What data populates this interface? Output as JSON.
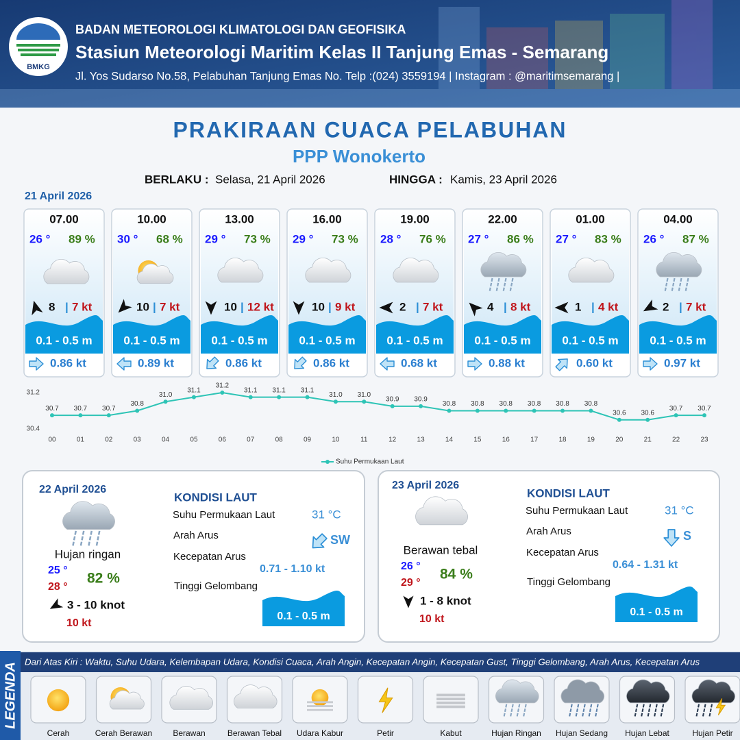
{
  "header": {
    "logo_text": "BMKG",
    "agency": "BADAN METEOROLOGI KLIMATOLOGI DAN GEOFISIKA",
    "station": "Stasiun Meteorologi Maritim Kelas II Tanjung Emas - Semarang",
    "address": "Jl. Yos Sudarso No.58, Pelabuhan Tanjung Emas No. Telp :(024) 3559194 | Instagram : @maritimsemarang |"
  },
  "title": "PRAKIRAAN CUACA PELABUHAN",
  "subtitle": "PPP Wonokerto",
  "validity": {
    "from_label": "BERLAKU :",
    "from": "Selasa, 21 April 2026",
    "to_label": "HINGGA :",
    "to": "Kamis, 23 April 2026"
  },
  "day1": {
    "date": "21 April 2026",
    "forecasts": [
      {
        "time": "07.00",
        "temp": "26 °",
        "humidity": "89 %",
        "weather": "Berawan",
        "wind_direction_deg": 345,
        "wind_speed": "8",
        "gust": "7 kt",
        "wave": "0.1 - 0.5 m",
        "current_direction_deg": 90,
        "current_speed": "0.86 kt"
      },
      {
        "time": "10.00",
        "temp": "30 °",
        "humidity": "68 %",
        "weather": "Cerah Berawan",
        "wind_direction_deg": 225,
        "wind_speed": "10",
        "gust": "7 kt",
        "wave": "0.1 - 0.5 m",
        "current_direction_deg": 270,
        "current_speed": "0.89 kt"
      },
      {
        "time": "13.00",
        "temp": "29 °",
        "humidity": "73 %",
        "weather": "Berawan Tebal",
        "wind_direction_deg": 180,
        "wind_speed": "10",
        "gust": "12 kt",
        "wave": "0.1 - 0.5 m",
        "current_direction_deg": 225,
        "current_speed": "0.86 kt"
      },
      {
        "time": "16.00",
        "temp": "29 °",
        "humidity": "73 %",
        "weather": "Berawan Tebal",
        "wind_direction_deg": 180,
        "wind_speed": "10",
        "gust": "9 kt",
        "wave": "0.1 - 0.5 m",
        "current_direction_deg": 225,
        "current_speed": "0.86 kt"
      },
      {
        "time": "19.00",
        "temp": "28 °",
        "humidity": "76 %",
        "weather": "Berawan Tebal",
        "wind_direction_deg": 270,
        "wind_speed": "2",
        "gust": "7 kt",
        "wave": "0.1 - 0.5 m",
        "current_direction_deg": 270,
        "current_speed": "0.68 kt"
      },
      {
        "time": "22.00",
        "temp": "27 °",
        "humidity": "86 %",
        "weather": "Hujan Ringan",
        "wind_direction_deg": 315,
        "wind_speed": "4",
        "gust": "8 kt",
        "wave": "0.1 - 0.5 m",
        "current_direction_deg": 90,
        "current_speed": "0.88 kt"
      },
      {
        "time": "01.00",
        "temp": "27 °",
        "humidity": "83 %",
        "weather": "Berawan Tebal",
        "wind_direction_deg": 270,
        "wind_speed": "1",
        "gust": "4 kt",
        "wave": "0.1 - 0.5 m",
        "current_direction_deg": 45,
        "current_speed": "0.60 kt"
      },
      {
        "time": "04.00",
        "temp": "26 °",
        "humidity": "87 %",
        "weather": "Hujan Ringan",
        "wind_direction_deg": 240,
        "wind_speed": "2",
        "gust": "7 kt",
        "wave": "0.1 - 0.5 m",
        "current_direction_deg": 90,
        "current_speed": "0.97 kt"
      }
    ]
  },
  "chart_data": {
    "type": "line",
    "categories": [
      "00",
      "01",
      "02",
      "03",
      "04",
      "05",
      "06",
      "07",
      "08",
      "09",
      "10",
      "11",
      "12",
      "13",
      "14",
      "15",
      "16",
      "17",
      "18",
      "19",
      "20",
      "21",
      "22",
      "23"
    ],
    "series": [
      {
        "name": "Suhu Permukaan Laut",
        "color": "#2ec4b6",
        "values": [
          30.7,
          30.7,
          30.7,
          30.8,
          31.0,
          31.1,
          31.2,
          31.1,
          31.1,
          31.1,
          31.0,
          31.0,
          30.9,
          30.9,
          30.8,
          30.8,
          30.8,
          30.8,
          30.8,
          30.8,
          30.6,
          30.6,
          30.7,
          30.7
        ],
        "value_labels": [
          "30.7",
          "30.7",
          "30.7",
          "30.8",
          "31.0",
          "31.1",
          "31.2",
          "31.1",
          "31.1",
          "31.1",
          "31.0",
          "31.0",
          "30.9",
          "30.9",
          "30.8",
          "30.8",
          "30.8",
          "30.8",
          "30.8",
          "30.8",
          "30.6",
          "30.6",
          "30.7",
          "30.7"
        ]
      }
    ],
    "ylim": [
      30.4,
      31.2
    ],
    "yticks": [
      30.4,
      31.2
    ],
    "legend": "bottom"
  },
  "days": [
    {
      "date": "22 April 2026",
      "condition": "Hujan ringan",
      "temp_min": "25 °",
      "temp_max": "28 °",
      "humidity": "82 %",
      "wind_direction_deg": 240,
      "wind": "3  - 10 knot",
      "gust": "10 kt",
      "sea_title": "KONDISI LAUT",
      "sst_label": "Suhu Permukaan Laut",
      "sst": "31 °C",
      "current_dir_label": "Arah Arus",
      "current_direction_deg": 225,
      "current_dir": "SW",
      "current_speed_label": "Kecepatan Arus",
      "current_speed": "0.71 - 1.10 kt",
      "wave_label": "Tinggi Gelombang",
      "wave": "0.1 - 0.5 m"
    },
    {
      "date": "23 April 2026",
      "condition": "Berawan tebal",
      "temp_min": "26 °",
      "temp_max": "29 °",
      "humidity": "84 %",
      "wind_direction_deg": 180,
      "wind": "1  - 8 knot",
      "gust": "10 kt",
      "sea_title": "KONDISI LAUT",
      "sst_label": "Suhu Permukaan Laut",
      "sst": "31 °C",
      "current_dir_label": "Arah Arus",
      "current_direction_deg": 180,
      "current_dir": "S",
      "current_speed_label": "Kecepatan Arus",
      "current_speed": "0.64 - 1.31 kt",
      "wave_label": "Tinggi Gelombang",
      "wave": "0.1 - 0.5 m"
    }
  ],
  "legend": {
    "title": "LEGENDA",
    "description": "Dari Atas Kiri : Waktu, Suhu Udara, Kelembapan Udara, Kondisi Cuaca, Arah Angin, Kecepatan Angin, Kecepatan Gust, Tinggi Gelombang, Arah Arus, Kecepatan Arus",
    "items": [
      "Cerah",
      "Cerah Berawan",
      "Berawan",
      "Berawan Tebal",
      "Udara Kabur",
      "Petir",
      "Kabut",
      "Hujan Ringan",
      "Hujan Sedang",
      "Hujan Lebat",
      "Hujan Petir"
    ]
  }
}
